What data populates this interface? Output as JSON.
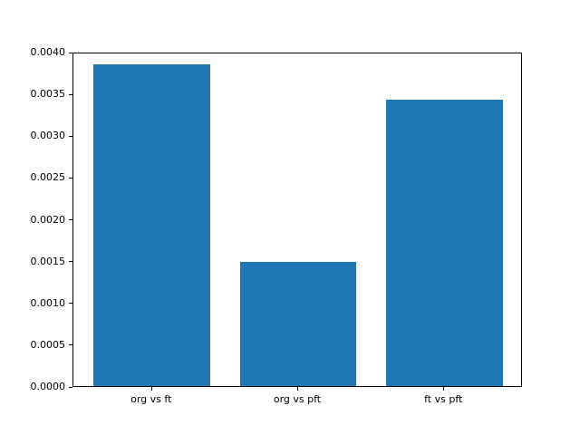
{
  "chart_data": {
    "type": "bar",
    "categories": [
      "org vs ft",
      "org vs pft",
      "ft vs pft"
    ],
    "values": [
      0.00385,
      0.00149,
      0.00343
    ],
    "title": "",
    "xlabel": "",
    "ylabel": "",
    "ylim": [
      0,
      0.004
    ],
    "ytick_values": [
      0.0,
      0.0005,
      0.001,
      0.0015,
      0.002,
      0.0025,
      0.003,
      0.0035,
      0.004
    ],
    "ytick_labels": [
      "0.0000",
      "0.0005",
      "0.0010",
      "0.0015",
      "0.0020",
      "0.0025",
      "0.0030",
      "0.0035",
      "0.0040"
    ],
    "bar_color": "#1f77b4",
    "grid": false,
    "legend": null,
    "background_color": "#ffffff",
    "frame_color": "#000000"
  }
}
